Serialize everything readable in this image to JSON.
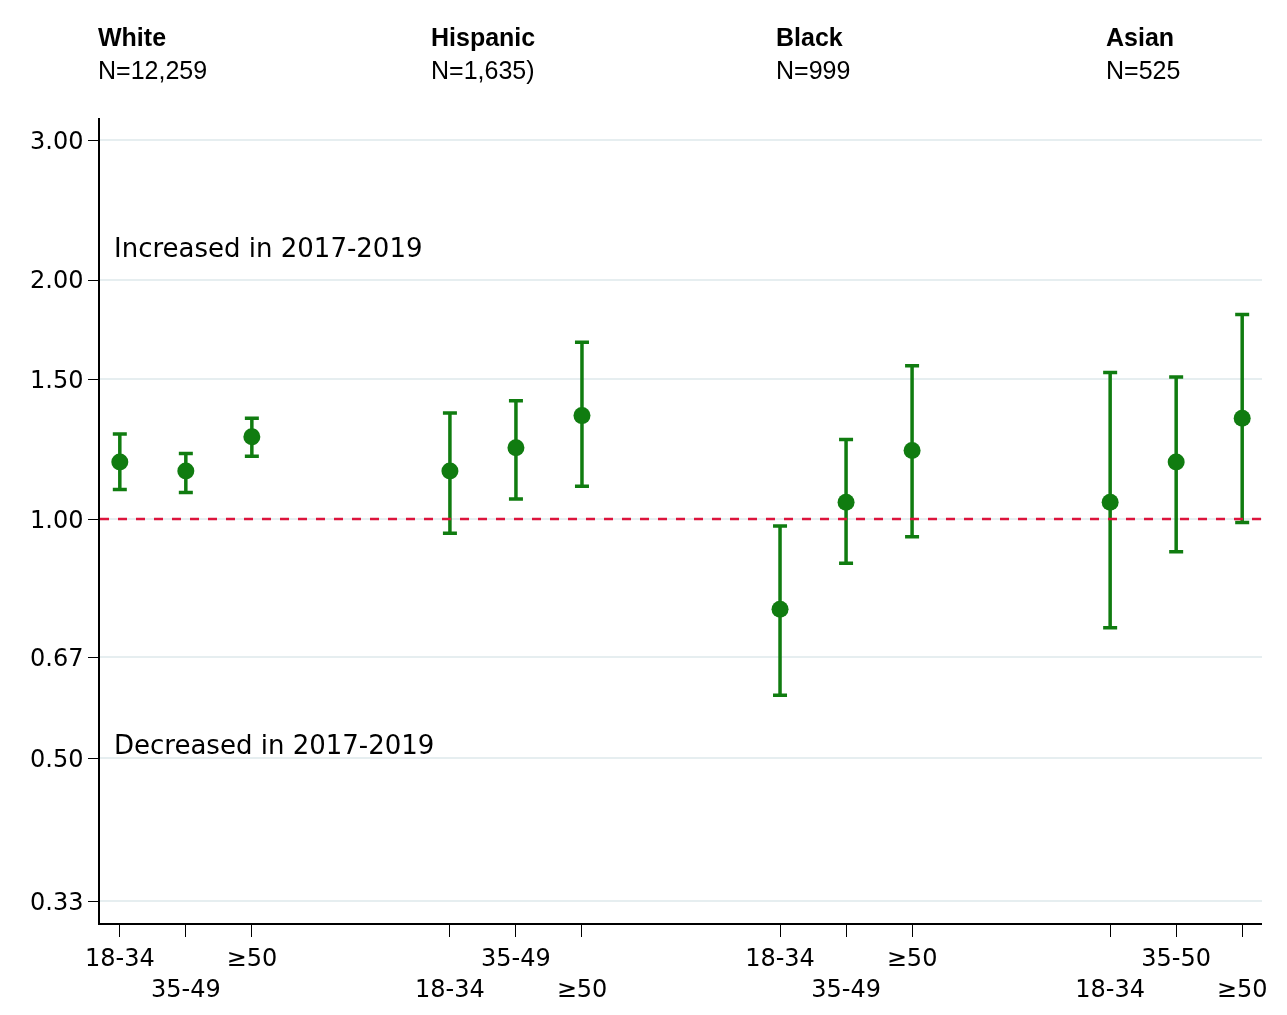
{
  "chart_data": {
    "type": "scatter",
    "log": "y",
    "grid": "y",
    "marker": "circle",
    "categories": [
      "18-34",
      "35-49",
      "≥50",
      null,
      null,
      "18-34",
      "35-49",
      "≥50",
      null,
      null,
      "18-34",
      "35-49",
      "≥50",
      null,
      null,
      "18-34",
      "35-50",
      "≥50"
    ],
    "series": [
      {
        "color": "#107c10",
        "values": [
          1.18,
          1.15,
          1.27,
          null,
          null,
          1.15,
          1.23,
          1.35,
          null,
          null,
          0.77,
          1.05,
          1.22,
          null,
          null,
          1.05,
          1.18,
          1.34
        ],
        "errors": [
          [
            1.09,
            1.28
          ],
          [
            1.08,
            1.21
          ],
          [
            1.2,
            1.34
          ],
          null,
          null,
          [
            0.96,
            1.36
          ],
          [
            1.06,
            1.41
          ],
          [
            1.1,
            1.67
          ],
          null,
          null,
          [
            0.6,
            0.98
          ],
          [
            0.88,
            1.26
          ],
          [
            0.95,
            1.56
          ],
          null,
          null,
          [
            0.73,
            1.53
          ],
          [
            0.91,
            1.51
          ],
          [
            0.99,
            1.81
          ]
        ]
      }
    ],
    "ylim": [
      0.31,
      3.2
    ],
    "yticks": [
      {
        "value": 0.33,
        "label": "0.33"
      },
      {
        "value": 0.5,
        "label": "0.50"
      },
      {
        "value": 0.67,
        "label": "0.67"
      },
      {
        "value": 1,
        "label": "1.00"
      },
      {
        "value": 1.5,
        "label": "1.50"
      },
      {
        "value": 2,
        "label": "2.00"
      },
      {
        "value": 3,
        "label": "3.00"
      }
    ],
    "ref_lines": [
      {
        "axis": "y",
        "value": 1,
        "color": "#dc143c",
        "line_style": "dashed"
      }
    ],
    "annotations": [
      "White\nN=12,259",
      "Hispanic\nN=1,635)",
      "Black\nN=999",
      "Asian\nN=525",
      "Increased in 2017-2019",
      "Decreased in 2017-2019"
    ]
  }
}
